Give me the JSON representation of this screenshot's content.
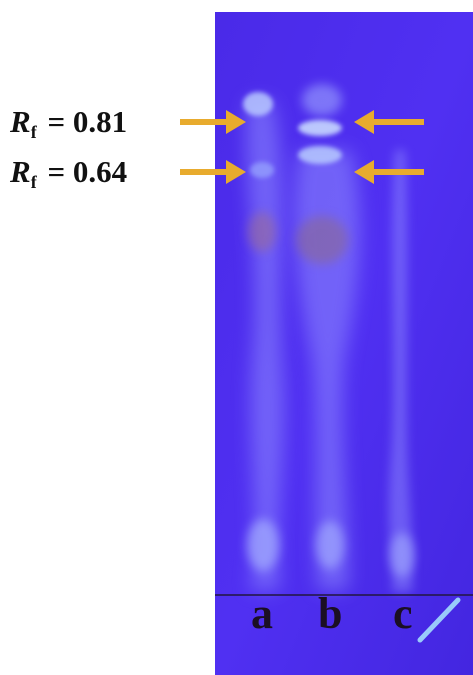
{
  "annotations": {
    "rf_markers": [
      {
        "symbol": "R",
        "subscript": "f",
        "equals": "=",
        "value": "0.81"
      },
      {
        "symbol": "R",
        "subscript": "f",
        "equals": "=",
        "value": "0.64"
      }
    ],
    "lane_labels": [
      "a",
      "b",
      "c"
    ]
  },
  "colors": {
    "plate": "#4b2cf0",
    "plate_edge": "#3a1fd8",
    "arrow": "#e8ab2e",
    "label_text": "#111111",
    "lane_glow": "#9aa0ff",
    "spot_highlight": "#c8d8ff",
    "spot_brown": "#8a6a8a"
  },
  "image": {
    "subject": "TLC plate under UV light with three lanes",
    "lane_count": 3
  }
}
